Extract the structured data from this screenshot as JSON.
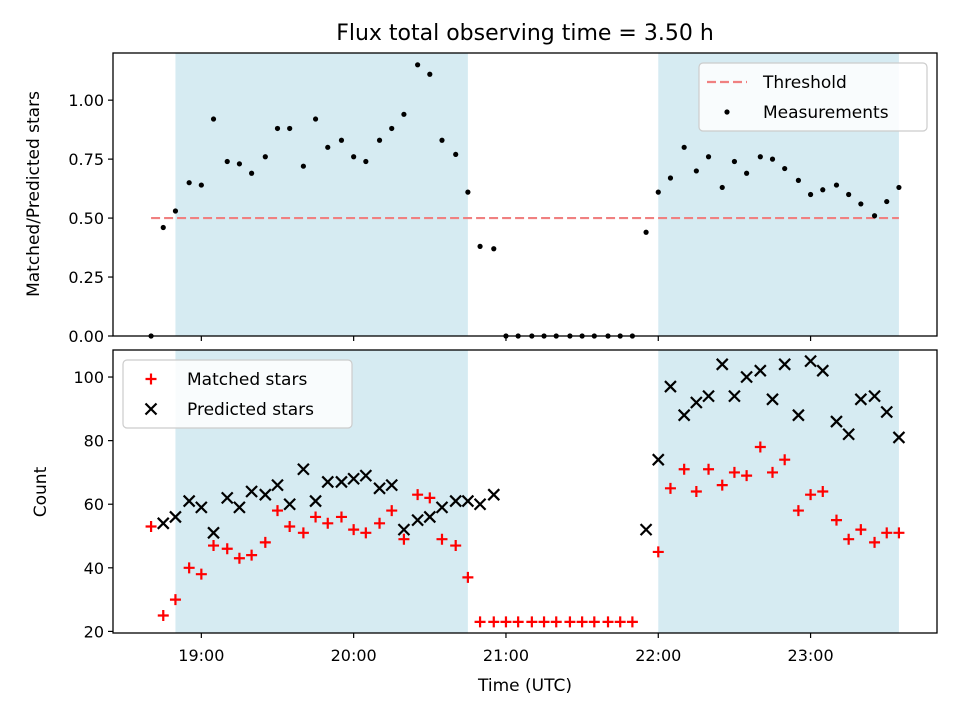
{
  "figure": {
    "title": "Flux total observing time = 3.50 h",
    "xlabel": "Time (UTC)",
    "x_ticks": [
      "19:00",
      "20:00",
      "21:00",
      "22:00",
      "23:00"
    ],
    "x_tick_hours": [
      19,
      20,
      21,
      22,
      23
    ],
    "xlim": [
      18.42,
      23.83
    ],
    "shaded_intervals": [
      [
        18.83,
        20.75
      ],
      [
        22.0,
        23.58
      ]
    ],
    "shade_color": "#add8e6"
  },
  "chart_data": [
    {
      "type": "scatter",
      "ylabel": "Matched/Predicted stars",
      "ylim": [
        0.0,
        1.2
      ],
      "yticks": [
        "0.00",
        "0.25",
        "0.50",
        "0.75",
        "1.00"
      ],
      "ytick_values": [
        0.0,
        0.25,
        0.5,
        0.75,
        1.0
      ],
      "legend_position": "top-right",
      "threshold": {
        "name": "Threshold",
        "value": 0.5,
        "x_range": [
          18.67,
          23.58
        ],
        "color": "#f08080",
        "style": "dashed"
      },
      "series": [
        {
          "name": "Measurements",
          "color": "#000000",
          "marker": "dot",
          "x": [
            18.67,
            18.75,
            18.83,
            18.92,
            19.0,
            19.08,
            19.17,
            19.25,
            19.33,
            19.42,
            19.5,
            19.58,
            19.67,
            19.75,
            19.83,
            19.92,
            20.0,
            20.08,
            20.17,
            20.25,
            20.33,
            20.42,
            20.5,
            20.58,
            20.67,
            20.75,
            20.83,
            20.92,
            21.0,
            21.08,
            21.17,
            21.25,
            21.33,
            21.42,
            21.5,
            21.58,
            21.67,
            21.75,
            21.83,
            21.92,
            22.0,
            22.08,
            22.17,
            22.25,
            22.33,
            22.42,
            22.5,
            22.58,
            22.67,
            22.75,
            22.83,
            22.92,
            23.0,
            23.08,
            23.17,
            23.25,
            23.33,
            23.42,
            23.5,
            23.58
          ],
          "y": [
            0.0,
            0.46,
            0.53,
            0.65,
            0.64,
            0.92,
            0.74,
            0.73,
            0.69,
            0.76,
            0.88,
            0.88,
            0.72,
            0.92,
            0.8,
            0.83,
            0.76,
            0.74,
            0.83,
            0.88,
            0.94,
            1.15,
            1.11,
            0.83,
            0.77,
            0.61,
            0.38,
            0.37,
            0.0,
            0.0,
            0.0,
            0.0,
            0.0,
            0.0,
            0.0,
            0.0,
            0.0,
            0.0,
            0.0,
            0.44,
            0.61,
            0.67,
            0.8,
            0.7,
            0.76,
            0.63,
            0.74,
            0.69,
            0.76,
            0.75,
            0.71,
            0.66,
            0.6,
            0.62,
            0.64,
            0.6,
            0.56,
            0.51,
            0.57,
            0.63
          ]
        }
      ]
    },
    {
      "type": "scatter",
      "ylabel": "Count",
      "ylim": [
        19.5,
        108.5
      ],
      "yticks": [
        "20",
        "40",
        "60",
        "80",
        "100"
      ],
      "ytick_values": [
        20,
        40,
        60,
        80,
        100
      ],
      "legend_position": "top-left",
      "series": [
        {
          "name": "Matched stars",
          "color": "#ff0000",
          "marker": "plus",
          "x": [
            18.67,
            18.75,
            18.83,
            18.92,
            19.0,
            19.08,
            19.17,
            19.25,
            19.33,
            19.42,
            19.5,
            19.58,
            19.67,
            19.75,
            19.83,
            19.92,
            20.0,
            20.08,
            20.17,
            20.25,
            20.33,
            20.42,
            20.5,
            20.58,
            20.67,
            20.75,
            20.83,
            20.92,
            21.0,
            21.08,
            21.17,
            21.25,
            21.33,
            21.42,
            21.5,
            21.58,
            21.67,
            21.75,
            21.83,
            22.0,
            22.08,
            22.17,
            22.25,
            22.33,
            22.42,
            22.5,
            22.58,
            22.67,
            22.75,
            22.83,
            22.92,
            23.0,
            23.08,
            23.17,
            23.25,
            23.33,
            23.42,
            23.5,
            23.58
          ],
          "y": [
            53,
            25,
            30,
            40,
            38,
            47,
            46,
            43,
            44,
            48,
            58,
            53,
            51,
            56,
            54,
            56,
            52,
            51,
            54,
            58,
            49,
            63,
            62,
            49,
            47,
            37,
            23,
            23,
            23,
            23,
            23,
            23,
            23,
            23,
            23,
            23,
            23,
            23,
            23,
            45,
            65,
            71,
            64,
            71,
            66,
            70,
            69,
            78,
            70,
            74,
            58,
            63,
            64,
            55,
            49,
            52,
            48,
            51,
            51
          ]
        },
        {
          "name": "Predicted stars",
          "color": "#000000",
          "marker": "cross",
          "x": [
            18.75,
            18.83,
            18.92,
            19.0,
            19.08,
            19.17,
            19.25,
            19.33,
            19.42,
            19.5,
            19.58,
            19.67,
            19.75,
            19.83,
            19.92,
            20.0,
            20.08,
            20.17,
            20.25,
            20.33,
            20.42,
            20.5,
            20.58,
            20.67,
            20.75,
            20.83,
            20.92,
            21.92,
            22.0,
            22.08,
            22.17,
            22.25,
            22.33,
            22.42,
            22.5,
            22.58,
            22.67,
            22.75,
            22.83,
            22.92,
            23.0,
            23.08,
            23.17,
            23.25,
            23.33,
            23.42,
            23.5,
            23.58
          ],
          "y": [
            54,
            56,
            61,
            59,
            51,
            62,
            59,
            64,
            63,
            66,
            60,
            71,
            61,
            67,
            67,
            68,
            69,
            65,
            66,
            52,
            55,
            56,
            59,
            61,
            61,
            60,
            63,
            52,
            74,
            97,
            88,
            92,
            94,
            104,
            94,
            100,
            102,
            93,
            104,
            88,
            105,
            102,
            86,
            82,
            93,
            94,
            89,
            81
          ]
        }
      ]
    }
  ]
}
